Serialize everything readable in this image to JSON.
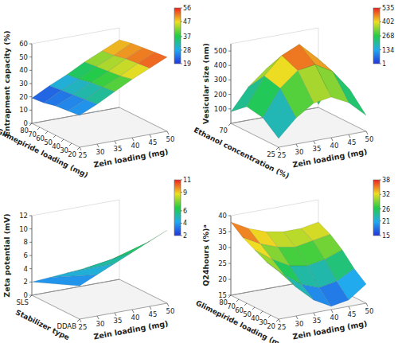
{
  "chart_data": [
    {
      "type": "surface",
      "x_label": "Zein loading (mg)",
      "y_label": "Glimepiride loading (mg)",
      "z_label": "Entrapment capacity (%)",
      "x": [
        25,
        30,
        35,
        40,
        45,
        50
      ],
      "y": [
        20,
        35,
        50,
        65,
        80
      ],
      "z": [
        [
          24,
          30,
          37,
          44,
          50,
          56
        ],
        [
          23,
          29,
          36,
          42,
          49,
          55
        ],
        [
          22,
          28,
          35,
          41,
          48,
          54
        ],
        [
          20,
          27,
          33,
          40,
          46,
          53
        ],
        [
          19,
          26,
          32,
          39,
          45,
          51
        ]
      ],
      "xlim": [
        25,
        50
      ],
      "xticks": [
        25,
        30,
        35,
        40,
        45,
        50
      ],
      "ylim": [
        20,
        80
      ],
      "yticks": [
        20,
        30,
        40,
        50,
        60,
        70,
        80
      ],
      "zlim": [
        0,
        60
      ],
      "zticks": [
        0,
        10,
        20,
        30,
        40,
        50,
        60
      ],
      "colorbar_range": [
        19,
        56
      ],
      "colorbar_ticks": [
        19,
        28,
        37,
        47,
        56
      ]
    },
    {
      "type": "surface",
      "x_label": "Zein loading (mg)",
      "y_label": "Ethanol concentration (%)",
      "z_label": "Vesicular size (nm)",
      "x": [
        25,
        30,
        35,
        40,
        45,
        50
      ],
      "y": [
        25,
        40,
        55,
        70
      ],
      "z": [
        [
          60,
          180,
          260,
          280,
          220,
          110
        ],
        [
          150,
          330,
          430,
          450,
          380,
          230
        ],
        [
          170,
          360,
          480,
          535,
          420,
          260
        ],
        [
          80,
          230,
          330,
          350,
          290,
          20
        ]
      ],
      "xlim": [
        25,
        50
      ],
      "xticks": [
        25,
        30,
        35,
        40,
        45,
        50
      ],
      "ylim": [
        25,
        70
      ],
      "yticks": [
        25,
        70
      ],
      "zlim": [
        0,
        550
      ],
      "zticks": [
        100,
        200,
        300,
        400,
        500
      ],
      "colorbar_range": [
        1,
        535
      ],
      "colorbar_ticks": [
        1,
        134,
        268,
        402,
        535
      ]
    },
    {
      "type": "surface",
      "x_label": "Zein loading (mg)",
      "y_label": "Stabilizer type",
      "z_label": "Zeta potential (mV)",
      "x": [
        25,
        30,
        35,
        40,
        45,
        50
      ],
      "y": [
        "DDAB",
        "SLS"
      ],
      "z": [
        [
          5,
          6.2,
          7.4,
          8.6,
          9.8,
          11
        ],
        [
          2,
          2.2,
          2.4,
          2.6,
          2.8,
          3
        ]
      ],
      "xlim": [
        25,
        50
      ],
      "xticks": [
        25,
        30,
        35,
        40,
        45,
        50
      ],
      "zlim": [
        0,
        12
      ],
      "zticks": [
        0,
        2,
        4,
        6,
        8,
        10,
        12
      ],
      "colorbar_range": [
        2,
        11
      ],
      "colorbar_ticks": [
        2,
        4,
        6,
        9,
        11
      ]
    },
    {
      "type": "surface",
      "x_label": "Zein loading (mg)",
      "y_label": "Glimepiride loading (mg)",
      "z_label": "Q24hours (%)ᵃ",
      "x": [
        25,
        30,
        35,
        40,
        45,
        50
      ],
      "y": [
        20,
        35,
        50,
        65,
        80
      ],
      "z": [
        [
          30,
          24,
          19,
          16,
          17,
          21
        ],
        [
          31,
          26,
          22,
          20,
          21,
          24
        ],
        [
          33,
          29,
          26,
          25,
          26,
          28
        ],
        [
          35,
          32,
          30,
          29,
          30,
          31
        ],
        [
          38,
          35,
          33,
          32,
          32,
          33
        ]
      ],
      "xlim": [
        25,
        50
      ],
      "xticks": [
        25,
        30,
        35,
        40,
        45,
        50
      ],
      "ylim": [
        20,
        80
      ],
      "yticks": [
        20,
        30,
        40,
        50,
        60,
        70,
        80
      ],
      "zlim": [
        15,
        40
      ],
      "zticks": [
        15,
        20,
        25,
        30,
        35,
        40
      ],
      "colorbar_range": [
        15,
        38
      ],
      "colorbar_ticks": [
        15,
        21,
        26,
        32,
        38
      ]
    }
  ]
}
